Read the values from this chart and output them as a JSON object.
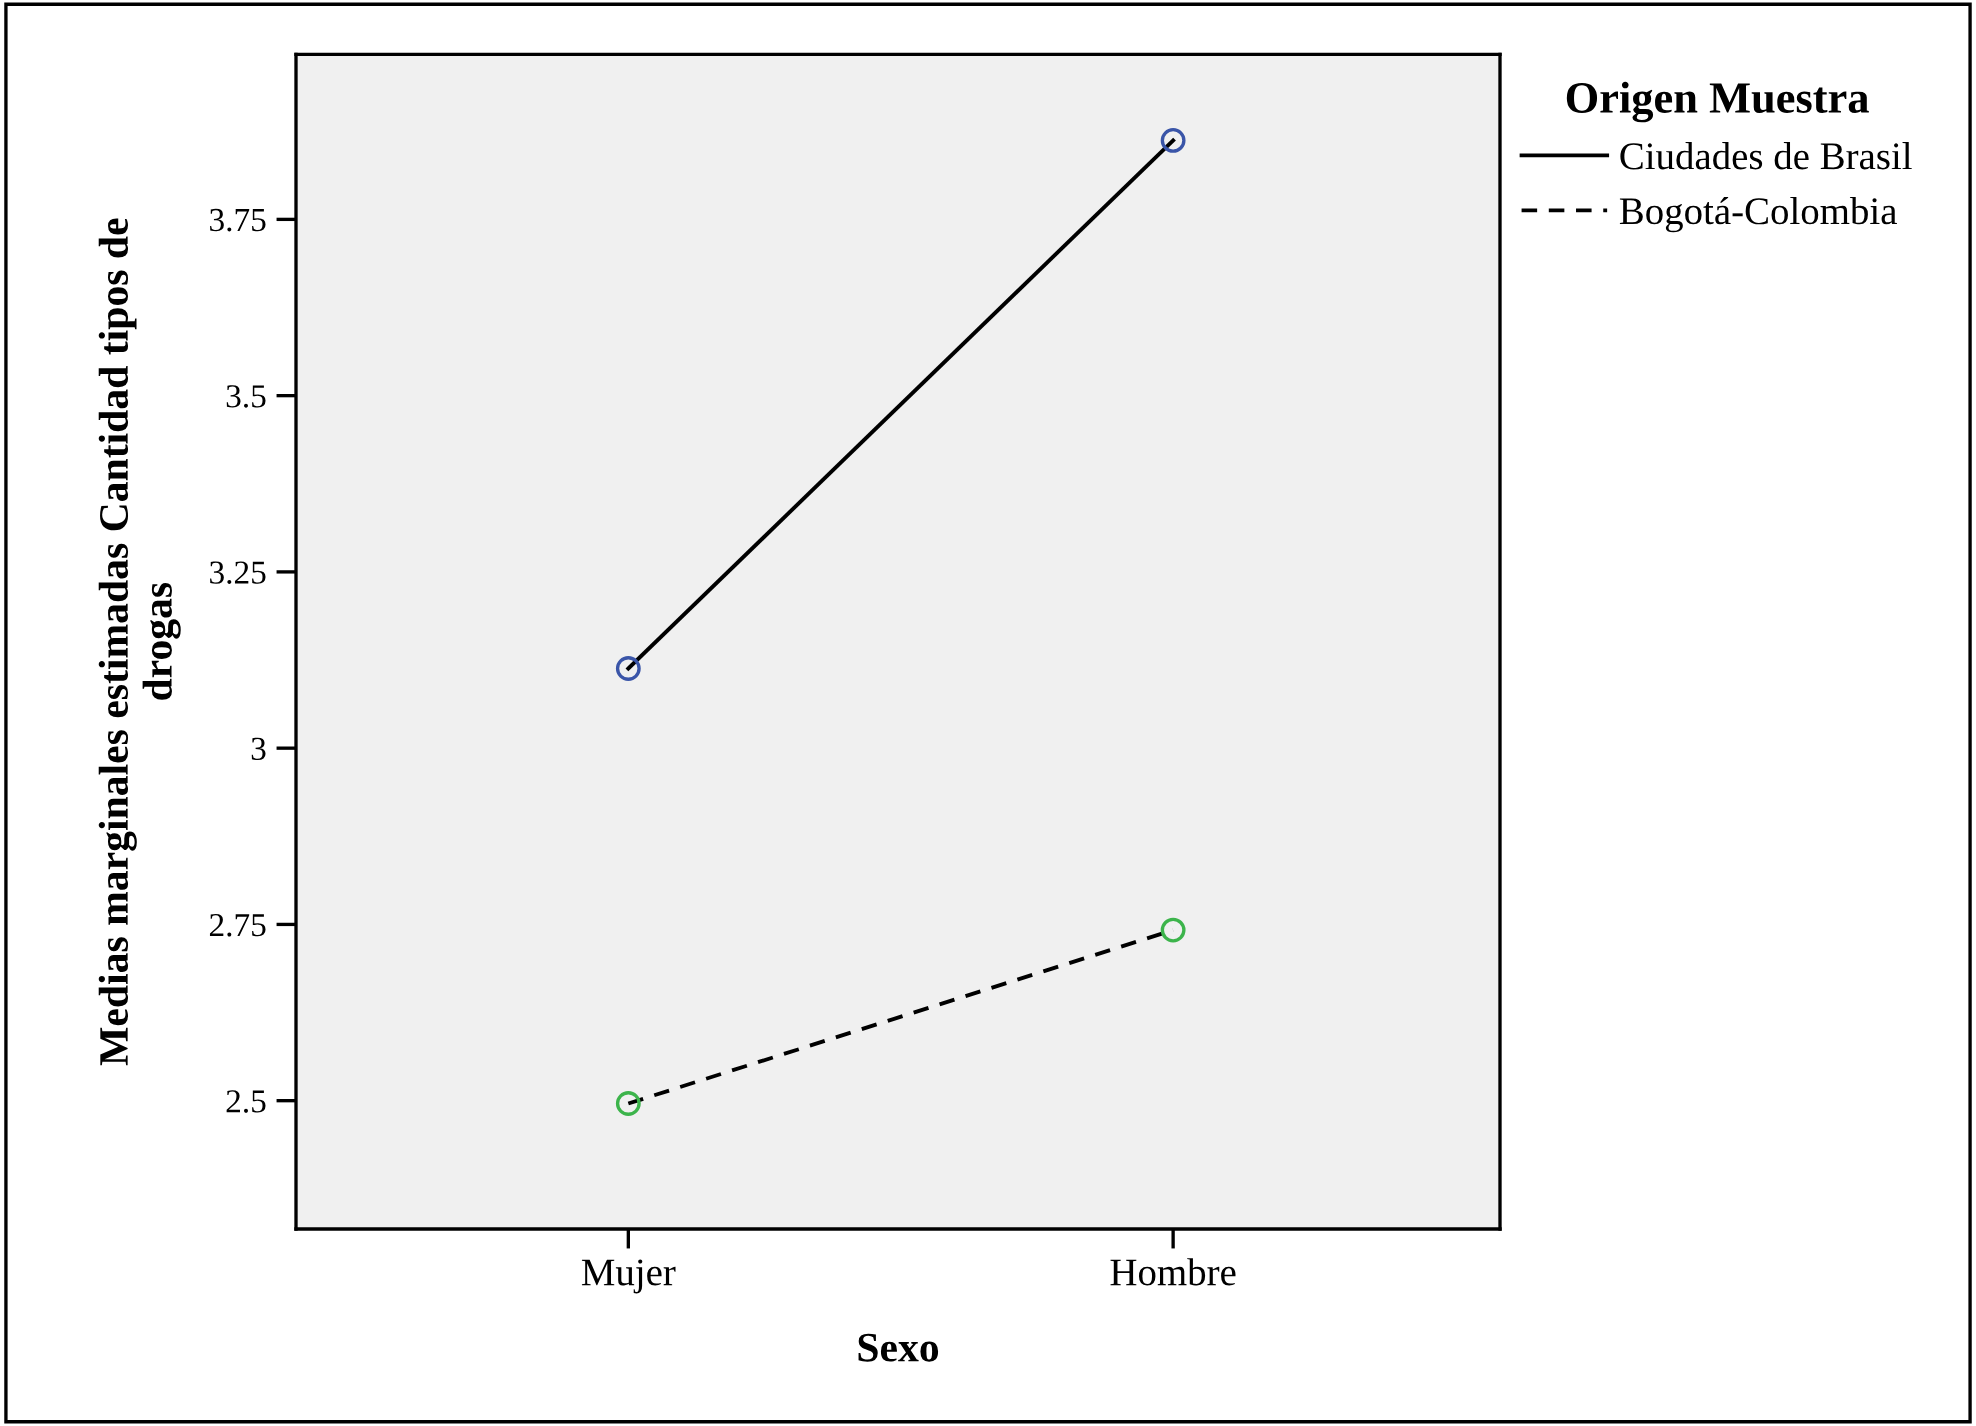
{
  "chart_data": {
    "type": "line",
    "xlabel": "Sexo",
    "ylabel": "Medias marginales estimadas Cantidad tipos de\ndrogas",
    "legend_title": "Origen Muestra",
    "categories": [
      "Mujer",
      "Hombre"
    ],
    "series": [
      {
        "name": "Ciudades de Brasil",
        "color": "#000000",
        "colors": [
          "#3a55a8",
          "#3a55a8"
        ],
        "line_style": "solid",
        "values": [
          3.113,
          3.862
        ]
      },
      {
        "name": "Bogotá-Colombia",
        "color": "#000000",
        "colors": [
          "#3cb44b",
          "#3cb44b"
        ],
        "line_style": "dashed",
        "values": [
          2.496,
          2.742
        ]
      }
    ],
    "ylim": [
      2.318,
      3.984
    ],
    "yticks": [
      2.5,
      2.75,
      3,
      3.25,
      3.5,
      3.75
    ],
    "marker": "circle",
    "grid": false,
    "legend": "top right"
  }
}
